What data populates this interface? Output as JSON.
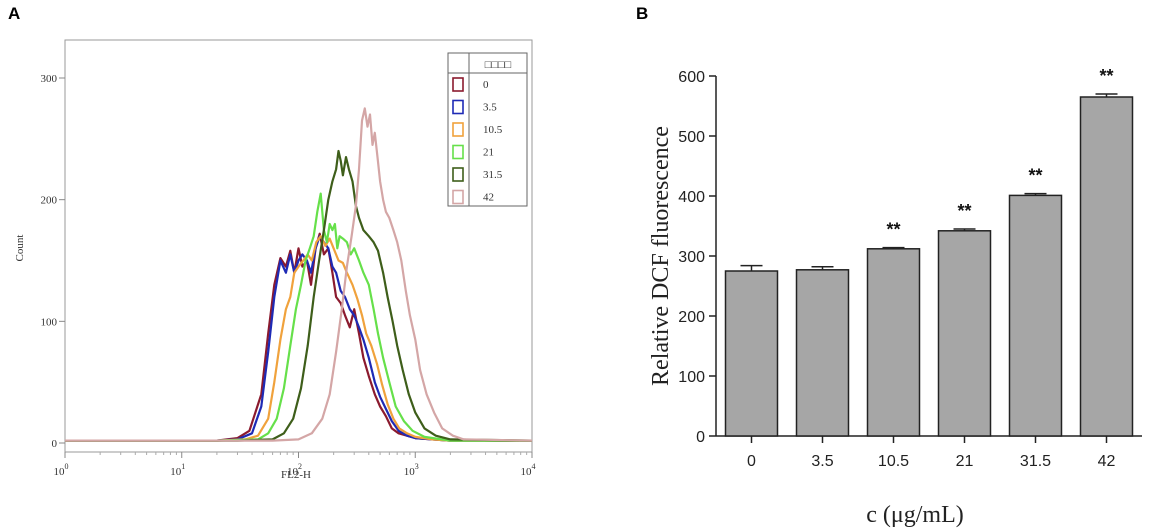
{
  "panels": {
    "a_label": "A",
    "b_label": "B"
  },
  "chart_data": [
    {
      "type": "line",
      "panel": "A",
      "title": "",
      "xlabel": "FL2-H",
      "ylabel": "Count",
      "xscale": "log",
      "xlim": [
        1,
        10000
      ],
      "ylim": [
        0,
        340
      ],
      "x_tick_labels": [
        "10^0",
        "10^1",
        "10^2",
        "10^3",
        "10^4"
      ],
      "x_ticks": [
        1,
        10,
        100,
        1000,
        10000
      ],
      "y_ticks": [
        0,
        100,
        200,
        300
      ],
      "y_tick_labels": [
        "0",
        "100",
        "200",
        "300"
      ],
      "legend": {
        "header": "□□□□",
        "position": "top-right"
      },
      "series": [
        {
          "name": "0",
          "color": "#8B1A2E",
          "x": [
            1,
            20,
            30,
            38,
            48,
            55,
            62,
            70,
            78,
            85,
            92,
            100,
            108,
            118,
            128,
            140,
            152,
            165,
            180,
            195,
            210,
            230,
            250,
            275,
            300,
            330,
            360,
            400,
            450,
            500,
            560,
            630,
            720,
            850,
            1000,
            1400,
            2000,
            10000
          ],
          "y": [
            2,
            2,
            4,
            10,
            40,
            90,
            130,
            152,
            145,
            158,
            140,
            160,
            145,
            150,
            130,
            160,
            172,
            155,
            160,
            140,
            120,
            115,
            105,
            95,
            110,
            90,
            70,
            55,
            40,
            30,
            22,
            12,
            8,
            6,
            4,
            3,
            2,
            2
          ]
        },
        {
          "name": "3.5",
          "color": "#1E2AB5",
          "x": [
            1,
            20,
            30,
            40,
            48,
            55,
            62,
            70,
            78,
            85,
            92,
            100,
            108,
            118,
            128,
            140,
            152,
            165,
            180,
            195,
            210,
            230,
            250,
            275,
            300,
            330,
            360,
            400,
            450,
            500,
            560,
            630,
            720,
            850,
            1000,
            1400,
            2000,
            10000
          ],
          "y": [
            2,
            2,
            3,
            8,
            30,
            75,
            120,
            150,
            140,
            155,
            140,
            150,
            155,
            150,
            140,
            160,
            170,
            165,
            160,
            145,
            140,
            125,
            120,
            110,
            105,
            95,
            85,
            70,
            50,
            38,
            28,
            18,
            10,
            6,
            4,
            3,
            2,
            2
          ]
        },
        {
          "name": "10.5",
          "color": "#F0A23C",
          "x": [
            1,
            20,
            35,
            45,
            55,
            62,
            70,
            78,
            85,
            92,
            100,
            110,
            120,
            130,
            142,
            155,
            170,
            185,
            200,
            220,
            240,
            260,
            290,
            320,
            350,
            380,
            420,
            470,
            520,
            580,
            650,
            730,
            850,
            1000,
            1400,
            2000,
            10000
          ],
          "y": [
            2,
            2,
            3,
            6,
            20,
            50,
            85,
            110,
            120,
            140,
            145,
            150,
            155,
            150,
            165,
            170,
            162,
            168,
            160,
            150,
            148,
            140,
            130,
            118,
            105,
            90,
            80,
            65,
            48,
            32,
            20,
            12,
            8,
            5,
            3,
            2,
            2
          ]
        },
        {
          "name": "21",
          "color": "#66E04A",
          "x": [
            1,
            20,
            45,
            55,
            65,
            75,
            85,
            95,
            105,
            115,
            125,
            135,
            145,
            155,
            165,
            175,
            185,
            195,
            205,
            215,
            225,
            240,
            260,
            280,
            300,
            330,
            360,
            400,
            440,
            480,
            530,
            600,
            680,
            800,
            950,
            1200,
            2000,
            10000
          ],
          "y": [
            2,
            2,
            3,
            8,
            20,
            45,
            80,
            110,
            130,
            150,
            160,
            170,
            190,
            205,
            175,
            165,
            180,
            175,
            180,
            160,
            170,
            168,
            165,
            155,
            160,
            150,
            140,
            130,
            110,
            90,
            70,
            50,
            30,
            18,
            10,
            5,
            2,
            2
          ]
        },
        {
          "name": "31.5",
          "color": "#3E5E1A",
          "x": [
            1,
            30,
            60,
            75,
            90,
            105,
            120,
            135,
            150,
            165,
            180,
            195,
            210,
            220,
            230,
            240,
            255,
            270,
            290,
            310,
            330,
            360,
            400,
            440,
            480,
            530,
            580,
            640,
            700,
            780,
            880,
            1000,
            1200,
            1500,
            2000,
            10000
          ],
          "y": [
            2,
            2,
            3,
            8,
            20,
            45,
            80,
            120,
            150,
            175,
            200,
            215,
            225,
            240,
            232,
            220,
            235,
            225,
            215,
            195,
            185,
            175,
            170,
            165,
            158,
            140,
            120,
            100,
            80,
            60,
            40,
            25,
            12,
            6,
            3,
            2
          ]
        },
        {
          "name": "42",
          "color": "#D4A6A6",
          "x": [
            1,
            60,
            100,
            130,
            160,
            185,
            210,
            235,
            260,
            285,
            310,
            330,
            350,
            370,
            390,
            410,
            430,
            450,
            475,
            500,
            530,
            560,
            600,
            650,
            700,
            760,
            830,
            900,
            1000,
            1100,
            1250,
            1450,
            1700,
            2100,
            2600,
            10000
          ],
          "y": [
            2,
            2,
            3,
            8,
            20,
            40,
            75,
            110,
            145,
            170,
            195,
            225,
            265,
            275,
            260,
            270,
            245,
            255,
            235,
            215,
            200,
            190,
            185,
            175,
            165,
            150,
            125,
            105,
            85,
            60,
            40,
            25,
            12,
            6,
            3,
            2
          ]
        }
      ]
    },
    {
      "type": "bar",
      "panel": "B",
      "title": "",
      "xlabel": "c (μg/mL)",
      "ylabel": "Relative DCF fluorescence",
      "categories": [
        "0",
        "3.5",
        "10.5",
        "21",
        "31.5",
        "42"
      ],
      "values": [
        275,
        277,
        312,
        342,
        401,
        565
      ],
      "errors": [
        9,
        5,
        2,
        3,
        3,
        5
      ],
      "significance": [
        "",
        "",
        "**",
        "**",
        "**",
        "**"
      ],
      "ylim": [
        0,
        600
      ],
      "y_ticks": [
        0,
        100,
        200,
        300,
        400,
        500,
        600
      ],
      "bar_color": "#A6A6A6"
    }
  ]
}
